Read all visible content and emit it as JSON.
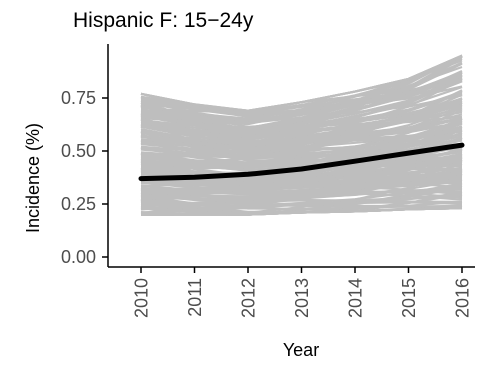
{
  "chart_data": {
    "type": "line",
    "title": "Hispanic F: 15−24y",
    "xlabel": "Year",
    "ylabel": "Incidence (%)",
    "x": [
      "2010",
      "2011",
      "2012",
      "2013",
      "2014",
      "2015",
      "2016"
    ],
    "ylim": [
      0,
      0.95
    ],
    "yticks": [
      "0.00",
      "0.25",
      "0.50",
      "0.75"
    ],
    "grid": false,
    "x_tick_label_rotation": "vertical",
    "colors": {
      "mean_line": "#000000",
      "sim_lines": "#bebebe"
    },
    "series": [
      {
        "role": "mean",
        "values": [
          0.37,
          0.376,
          0.39,
          0.415,
          0.452,
          0.49,
          0.528
        ]
      },
      {
        "role": "simulation-band-upper",
        "values": [
          0.77,
          0.72,
          0.69,
          0.73,
          0.78,
          0.84,
          0.95
        ]
      },
      {
        "role": "simulation-band-lower",
        "values": [
          0.2,
          0.2,
          0.2,
          0.21,
          0.215,
          0.225,
          0.23
        ]
      }
    ]
  }
}
